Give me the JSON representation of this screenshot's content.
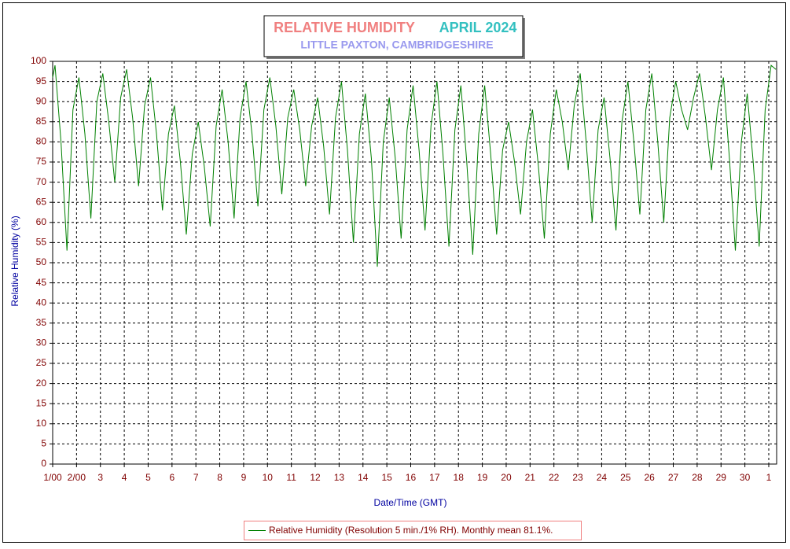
{
  "chart_data": {
    "type": "line",
    "title": "RELATIVE HUMIDITY",
    "title_period": "APRIL 2024",
    "subtitle": "LITTLE PAXTON, CAMBRIDGESHIRE",
    "x_label": "Date/Time (GMT)",
    "y_label": "Relative Humidity (%)",
    "xlim": [
      1,
      31.33
    ],
    "ylim": [
      0,
      100
    ],
    "xticks": [
      {
        "value": 1,
        "label": "1/00"
      },
      {
        "value": 2,
        "label": "2/00"
      },
      3,
      4,
      5,
      6,
      7,
      8,
      9,
      10,
      11,
      12,
      13,
      14,
      15,
      16,
      17,
      18,
      19,
      20,
      21,
      22,
      23,
      24,
      25,
      26,
      27,
      28,
      29,
      30,
      {
        "value": 31,
        "label": "1"
      }
    ],
    "yticks": [
      0,
      5,
      10,
      15,
      20,
      25,
      30,
      35,
      40,
      45,
      50,
      55,
      60,
      65,
      70,
      75,
      80,
      85,
      90,
      95,
      100
    ],
    "grid": true,
    "x": [
      1.0,
      1.1,
      1.35,
      1.6,
      1.85,
      2.1,
      2.35,
      2.6,
      2.85,
      3.1,
      3.35,
      3.6,
      3.85,
      4.1,
      4.35,
      4.6,
      4.85,
      5.1,
      5.35,
      5.6,
      5.85,
      6.1,
      6.35,
      6.6,
      6.85,
      7.1,
      7.35,
      7.6,
      7.85,
      8.1,
      8.35,
      8.6,
      8.85,
      9.1,
      9.35,
      9.6,
      9.85,
      10.1,
      10.35,
      10.6,
      10.85,
      11.1,
      11.35,
      11.6,
      11.85,
      12.1,
      12.35,
      12.6,
      12.85,
      13.1,
      13.35,
      13.6,
      13.85,
      14.1,
      14.35,
      14.6,
      14.85,
      15.1,
      15.35,
      15.6,
      15.85,
      16.1,
      16.35,
      16.6,
      16.85,
      17.1,
      17.35,
      17.6,
      17.85,
      18.1,
      18.35,
      18.6,
      18.85,
      19.1,
      19.35,
      19.6,
      19.85,
      20.1,
      20.35,
      20.6,
      20.85,
      21.1,
      21.35,
      21.6,
      21.85,
      22.1,
      22.35,
      22.6,
      22.85,
      23.1,
      23.35,
      23.6,
      23.85,
      24.1,
      24.35,
      24.6,
      24.85,
      25.1,
      25.35,
      25.6,
      25.85,
      26.1,
      26.35,
      26.6,
      26.85,
      27.1,
      27.35,
      27.6,
      27.85,
      28.1,
      28.35,
      28.6,
      28.85,
      29.1,
      29.35,
      29.6,
      29.85,
      30.1,
      30.35,
      30.6,
      30.85,
      31.1,
      31.3
    ],
    "series": [
      {
        "name": "Relative Humidity (Resolution 5 min./1% RH). Monthly mean 81.1%.",
        "color": "#008000",
        "values": [
          96,
          99,
          80,
          53,
          88,
          96,
          82,
          61,
          90,
          97,
          85,
          70,
          91,
          98,
          86,
          69,
          89,
          96,
          82,
          63,
          82,
          89,
          75,
          57,
          77,
          85,
          74,
          59,
          84,
          93,
          80,
          61,
          86,
          95,
          82,
          64,
          88,
          96,
          84,
          67,
          86,
          93,
          83,
          69,
          84,
          91,
          79,
          62,
          86,
          95,
          78,
          55,
          82,
          92,
          76,
          49,
          80,
          91,
          76,
          56,
          83,
          94,
          78,
          58,
          84,
          95,
          77,
          54,
          83,
          94,
          75,
          52,
          82,
          94,
          77,
          57,
          78,
          85,
          75,
          62,
          80,
          88,
          74,
          56,
          82,
          93,
          85,
          73,
          89,
          97,
          80,
          60,
          83,
          91,
          76,
          58,
          85,
          95,
          80,
          62,
          88,
          97,
          80,
          60,
          86,
          95,
          88,
          83,
          91,
          97,
          86,
          73,
          88,
          96,
          76,
          53,
          80,
          92,
          75,
          54,
          88,
          99,
          98
        ]
      }
    ]
  }
}
